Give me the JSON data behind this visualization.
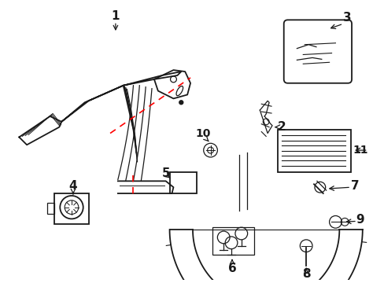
{
  "bg_color": "#ffffff",
  "line_color": "#1a1a1a",
  "red_color": "#ff0000",
  "figsize": [
    4.89,
    3.6
  ],
  "dpi": 100,
  "label_fontsize": 10,
  "label_fontsize_large": 11
}
